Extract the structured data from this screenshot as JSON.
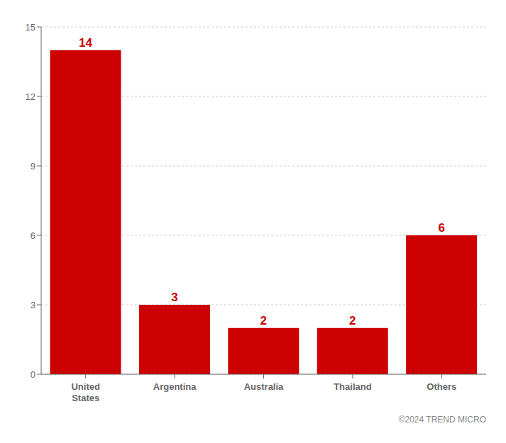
{
  "chart_data": {
    "type": "bar",
    "categories": [
      "United\nStates",
      "Argentina",
      "Australia",
      "Thailand",
      "Others"
    ],
    "values": [
      14,
      3,
      2,
      2,
      6
    ],
    "color": "#CC0000",
    "ylim": [
      0,
      15
    ],
    "yticks": [
      0,
      3,
      6,
      9,
      12,
      15
    ],
    "grid": true,
    "data_labels": true,
    "annotations": [
      "©2024 TREND MICRO"
    ]
  }
}
